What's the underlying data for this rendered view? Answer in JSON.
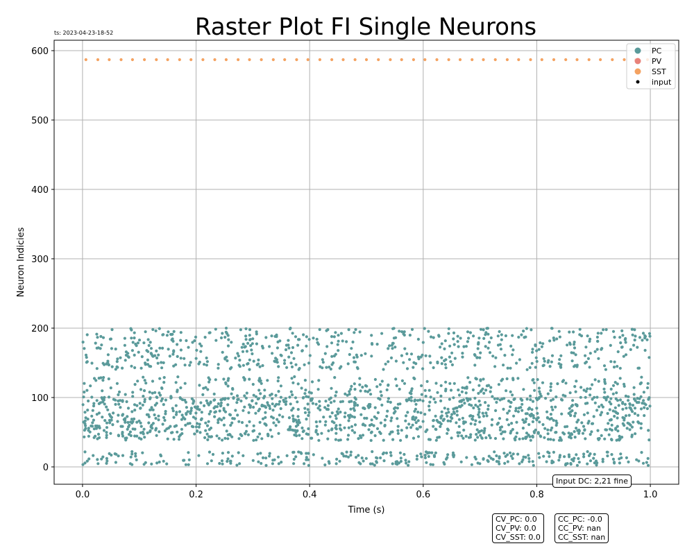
{
  "timestamp": "ts: 2023-04-23-18-52",
  "notes": {
    "input": "Input DC: 2,21 fine",
    "cv": [
      "CV_PC: 0.0",
      "CV_PV: 0.0",
      "CV_SST: 0.0"
    ],
    "cc": [
      "CC_PC: -0.0",
      "CC_PV: nan",
      "CC_SST: nan"
    ]
  },
  "colors": {
    "PC": "#5a9a9a",
    "PV": "#e8827a",
    "SST": "#f4a261",
    "input": "#000000",
    "grid": "#b0b0b0"
  },
  "chart_data": {
    "type": "scatter",
    "title": "Raster Plot FI Single Neurons",
    "xlabel": "Time (s)",
    "ylabel": "Neuron Indicies",
    "xlim": [
      -0.05,
      1.05
    ],
    "ylim": [
      -25,
      615
    ],
    "xticks": [
      0.0,
      0.2,
      0.4,
      0.6,
      0.8,
      1.0
    ],
    "xtick_labels": [
      "0.0",
      "0.2",
      "0.4",
      "0.6",
      "0.8",
      "1.0"
    ],
    "yticks": [
      0,
      100,
      200,
      300,
      400,
      500,
      600
    ],
    "ytick_labels": [
      "0",
      "100",
      "200",
      "300",
      "400",
      "500",
      "600"
    ],
    "grid": true,
    "legend_position": "top-right",
    "series": [
      {
        "name": "PC",
        "neuron_index_range": [
          0,
          200
        ],
        "time_range": [
          0.0,
          1.0
        ],
        "approx_spike_count": 2200
      },
      {
        "name": "PV",
        "neuron_index_range": [],
        "time_range": [],
        "approx_spike_count": 0
      },
      {
        "name": "SST",
        "neuron_index": 587,
        "spike_times": [
          0.006,
          0.027,
          0.047,
          0.068,
          0.088,
          0.109,
          0.13,
          0.15,
          0.171,
          0.191,
          0.212,
          0.233,
          0.253,
          0.274,
          0.294,
          0.315,
          0.336,
          0.356,
          0.377,
          0.397,
          0.418,
          0.439,
          0.459,
          0.48,
          0.5,
          0.521,
          0.542,
          0.562,
          0.583,
          0.603,
          0.624,
          0.645,
          0.665,
          0.686,
          0.706,
          0.727,
          0.748,
          0.768,
          0.789,
          0.809,
          0.83,
          0.851,
          0.871,
          0.892,
          0.912,
          0.933,
          0.954,
          0.974,
          0.995
        ]
      },
      {
        "name": "input",
        "neuron_index_range": [],
        "time_range": [],
        "approx_spike_count": 0
      }
    ]
  }
}
